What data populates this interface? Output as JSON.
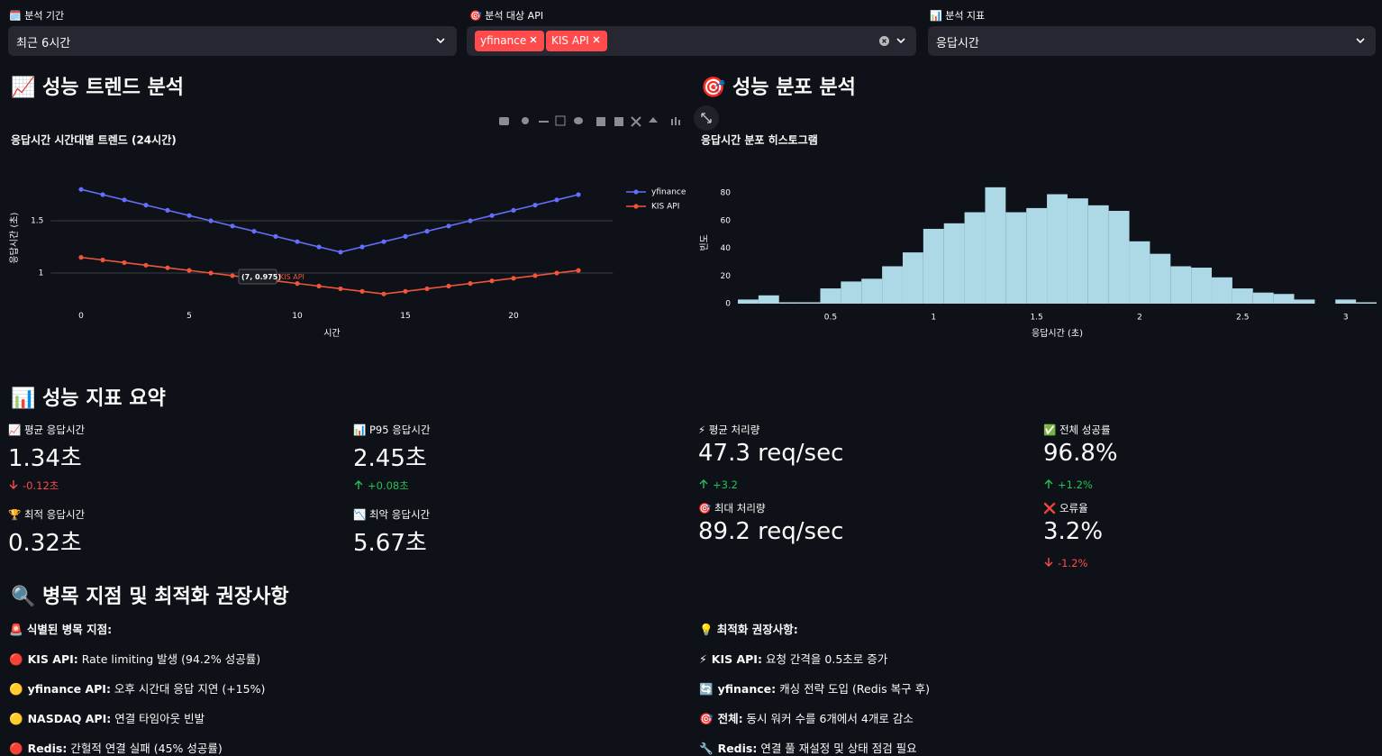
{
  "filters": [
    {
      "label": "🗓️ 분석 기간",
      "value": "최근 6시간"
    },
    {
      "label": "🎯 분석 대상 API",
      "tags": [
        "yfinance",
        "KIS API"
      ]
    },
    {
      "label": "📊 분석 지표",
      "value": "응답시간"
    }
  ],
  "sections": {
    "trend": "📈 성능 트렌드 분석",
    "distribution": "🎯 성능 분포 분석",
    "summary": "📊 성능 지표 요약",
    "bottleneck": "🔍 병목 지점 및 최적화 권장사항"
  },
  "chart_data": [
    {
      "type": "line",
      "title": "응답시간 시간대별 트렌드 (24시간)",
      "x": [
        0,
        1,
        2,
        3,
        4,
        5,
        6,
        7,
        8,
        9,
        10,
        11,
        12,
        13,
        14,
        15,
        16,
        17,
        18,
        19,
        20,
        21,
        22,
        23
      ],
      "series": [
        {
          "name": "yfinance",
          "color": "#636efa",
          "values": [
            1.8,
            1.75,
            1.7,
            1.65,
            1.6,
            1.55,
            1.5,
            1.45,
            1.4,
            1.35,
            1.3,
            1.25,
            1.2,
            1.25,
            1.3,
            1.35,
            1.4,
            1.45,
            1.5,
            1.55,
            1.6,
            1.65,
            1.7,
            1.75
          ]
        },
        {
          "name": "KIS API",
          "color": "#ef553b",
          "values": [
            1.15,
            1.125,
            1.1,
            1.075,
            1.05,
            1.025,
            1.0,
            0.975,
            0.95,
            0.925,
            0.9,
            0.875,
            0.85,
            0.825,
            0.8,
            0.825,
            0.85,
            0.875,
            0.9,
            0.925,
            0.95,
            0.975,
            1.0,
            1.025
          ]
        }
      ],
      "xlim": [
        -1.4,
        24.6
      ],
      "ylim": [
        0.72,
        1.95
      ],
      "xticks": [
        0,
        5,
        10,
        15,
        20
      ],
      "yticks": [
        1,
        1.5
      ],
      "x_label": "시간",
      "y_label": "응답시간 (초)",
      "grid": true,
      "tooltip": "(7, 0.975)"
    },
    {
      "type": "histogram",
      "title": "응답시간 분포 히스토그램",
      "bins": [
        0.05,
        0.15,
        0.25,
        0.35,
        0.45,
        0.55,
        0.65,
        0.75,
        0.85,
        0.95,
        1.05,
        1.15,
        1.25,
        1.35,
        1.45,
        1.55,
        1.65,
        1.75,
        1.85,
        1.95,
        2.05,
        2.15,
        2.25,
        2.35,
        2.45,
        2.55,
        2.65,
        2.75,
        2.85,
        2.95,
        3.05,
        3.15
      ],
      "values": [
        3,
        6,
        1,
        1,
        11,
        16,
        18,
        27,
        37,
        54,
        58,
        66,
        84,
        66,
        69,
        79,
        76,
        71,
        67,
        45,
        36,
        27,
        26,
        19,
        11,
        8,
        7,
        3,
        0,
        3,
        1
      ],
      "color": "#add8e6",
      "xlim": [
        0.05,
        3.15
      ],
      "ylim": [
        0,
        88
      ],
      "xticks": [
        0.5,
        1,
        1.5,
        2,
        2.5,
        3
      ],
      "yticks": [
        0,
        20,
        40,
        60,
        80
      ],
      "x_label": "응답시간 (초)",
      "y_label": "빈도",
      "grid": false
    }
  ],
  "metrics": [
    [
      {
        "label": "📈 평균 응답시간",
        "value": "1.34초",
        "delta": "-0.12초",
        "delta_direction": "down"
      },
      {
        "label": "🏆 최적 응답시간",
        "value": "0.32초"
      }
    ],
    [
      {
        "label": "📊 P95 응답시간",
        "value": "2.45초",
        "delta": "+0.08초",
        "delta_direction": "up"
      },
      {
        "label": "📉 최악 응답시간",
        "value": "5.67초"
      }
    ],
    [
      {
        "label": "⚡ 평균 처리량",
        "value": "47.3 req/sec",
        "delta": "+3.2",
        "delta_direction": "up"
      },
      {
        "label": "🎯 최대 처리량",
        "value": "89.2 req/sec"
      }
    ],
    [
      {
        "label": "✅ 전체 성공률",
        "value": "96.8%",
        "delta": "+1.2%",
        "delta_direction": "up"
      },
      {
        "label": "❌ 오류율",
        "value": "3.2%",
        "delta": "-1.2%",
        "delta_direction": "down"
      }
    ]
  ],
  "lists": [
    {
      "heading": "🚨 식별된 병목 지점:",
      "items": [
        {
          "icon": "🔴",
          "name": "KIS API:",
          "text": " Rate limiting 발생 (94.2% 성공률)"
        },
        {
          "icon": "🟡",
          "name": "yfinance API:",
          "text": " 오후 시간대 응답 지연 (+15%)"
        },
        {
          "icon": "🟡",
          "name": "NASDAQ API:",
          "text": " 연결 타임아웃 빈발"
        },
        {
          "icon": "🔴",
          "name": "Redis:",
          "text": " 간헐적 연결 실패 (45% 성공률)"
        }
      ]
    },
    {
      "heading": "💡 최적화 권장사항:",
      "items": [
        {
          "icon": "⚡",
          "name": "KIS API:",
          "text": " 요청 간격을 0.5초로 증가"
        },
        {
          "icon": "🔄",
          "name": "yfinance:",
          "text": " 캐싱 전략 도입 (Redis 복구 후)"
        },
        {
          "icon": "🎯",
          "name": "전체:",
          "text": " 동시 워커 수를 6개에서 4개로 감소"
        },
        {
          "icon": "🔧",
          "name": "Redis:",
          "text": " 연결 풀 재설정 및 상태 점검 필요"
        }
      ]
    }
  ]
}
